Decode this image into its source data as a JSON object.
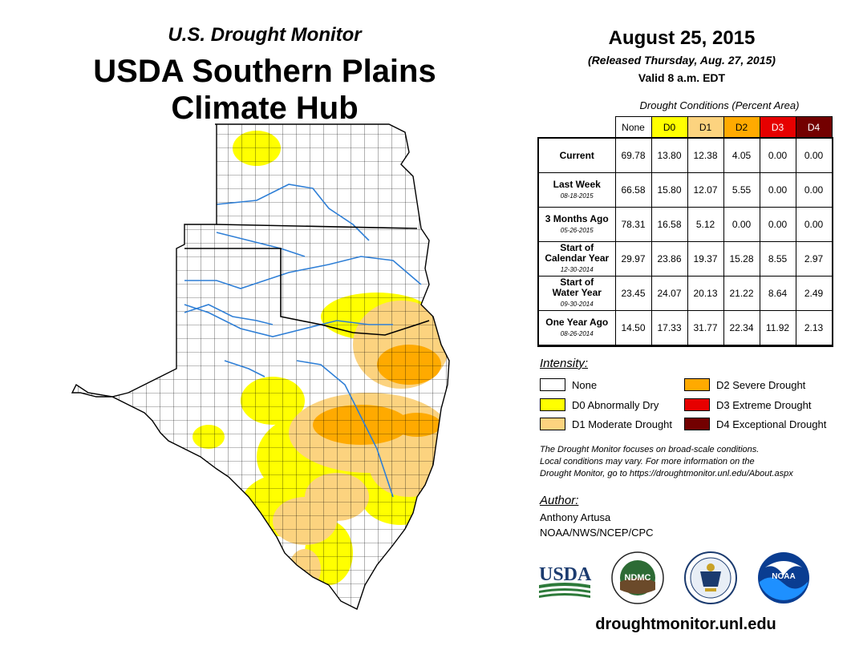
{
  "header": {
    "subtitle": "U.S. Drought Monitor",
    "title_line1": "USDA Southern Plains",
    "title_line2": "Climate Hub"
  },
  "info": {
    "date": "August 25, 2015",
    "released": "(Released Thursday, Aug. 27, 2015)",
    "valid": "Valid 8 a.m. EDT"
  },
  "table": {
    "caption": "Drought Conditions (Percent Area)",
    "columns": [
      {
        "label": "None",
        "color": "#ffffff",
        "text": "#000000"
      },
      {
        "label": "D0",
        "color": "#ffff00",
        "text": "#000000"
      },
      {
        "label": "D1",
        "color": "#fcd37f",
        "text": "#000000"
      },
      {
        "label": "D2",
        "color": "#ffaa00",
        "text": "#000000"
      },
      {
        "label": "D3",
        "color": "#e60000",
        "text": "#ffffff"
      },
      {
        "label": "D4",
        "color": "#730000",
        "text": "#ffffff"
      }
    ],
    "rows": [
      {
        "label": [
          "Current"
        ],
        "sub": "",
        "values": [
          "69.78",
          "13.80",
          "12.38",
          "4.05",
          "0.00",
          "0.00"
        ]
      },
      {
        "label": [
          "Last Week"
        ],
        "sub": "08-18-2015",
        "values": [
          "66.58",
          "15.80",
          "12.07",
          "5.55",
          "0.00",
          "0.00"
        ]
      },
      {
        "label": [
          "3 Months Ago"
        ],
        "sub": "05-26-2015",
        "values": [
          "78.31",
          "16.58",
          "5.12",
          "0.00",
          "0.00",
          "0.00"
        ]
      },
      {
        "label": [
          "Start of",
          "Calendar Year"
        ],
        "sub": "12-30-2014",
        "values": [
          "29.97",
          "23.86",
          "19.37",
          "15.28",
          "8.55",
          "2.97"
        ]
      },
      {
        "label": [
          "Start of",
          "Water Year"
        ],
        "sub": "09-30-2014",
        "values": [
          "23.45",
          "24.07",
          "20.13",
          "21.22",
          "8.64",
          "2.49"
        ]
      },
      {
        "label": [
          "One Year Ago"
        ],
        "sub": "08-26-2014",
        "values": [
          "14.50",
          "17.33",
          "31.77",
          "22.34",
          "11.92",
          "2.13"
        ]
      }
    ]
  },
  "legend": {
    "title": "Intensity:",
    "items": [
      {
        "label": "None",
        "color": "#ffffff"
      },
      {
        "label": "D0 Abnormally Dry",
        "color": "#ffff00"
      },
      {
        "label": "D1 Moderate Drought",
        "color": "#fcd37f"
      },
      {
        "label": "D2 Severe Drought",
        "color": "#ffaa00"
      },
      {
        "label": "D3 Extreme Drought",
        "color": "#e60000"
      },
      {
        "label": "D4 Exceptional Drought",
        "color": "#730000"
      }
    ]
  },
  "note": {
    "line1": "The Drought Monitor focuses on broad-scale conditions.",
    "line2": "Local conditions may vary. For more information on the",
    "line3": "Drought Monitor, go to https://droughtmonitor.unl.edu/About.aspx"
  },
  "author": {
    "title": "Author:",
    "name": "Anthony Artusa",
    "org": "NOAA/NWS/NCEP/CPC"
  },
  "logos": {
    "usda": "USDA",
    "ndmc": "NDMC",
    "noaa": "NOAA"
  },
  "site": "droughtmonitor.unl.edu"
}
